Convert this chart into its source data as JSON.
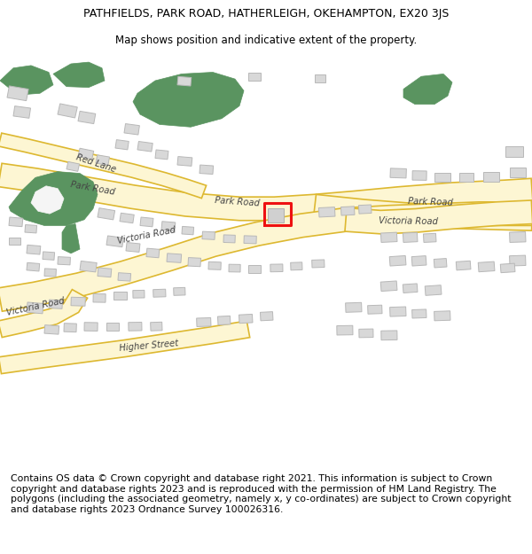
{
  "title": "PATHFIELDS, PARK ROAD, HATHERLEIGH, OKEHAMPTON, EX20 3JS",
  "subtitle": "Map shows position and indicative extent of the property.",
  "footer": "Contains OS data © Crown copyright and database right 2021. This information is subject to Crown copyright and database rights 2023 and is reproduced with the permission of HM Land Registry. The polygons (including the associated geometry, namely x, y co-ordinates) are subject to Crown copyright and database rights 2023 Ordnance Survey 100026316.",
  "title_fontsize": 9,
  "subtitle_fontsize": 8.5,
  "footer_fontsize": 7.8,
  "bg_color": "#ffffff",
  "map_bg": "#f5f5f5",
  "road_fill": "#fdf6d3",
  "road_edge": "#ddb830",
  "building_color": "#d8d8d8",
  "building_edge": "#b8b8b8",
  "green_color": "#5a9460",
  "plot_edge": "#ee1111",
  "road_label_color": "#444444",
  "xlim": [
    0,
    600
  ],
  "ylim": [
    0,
    490
  ]
}
